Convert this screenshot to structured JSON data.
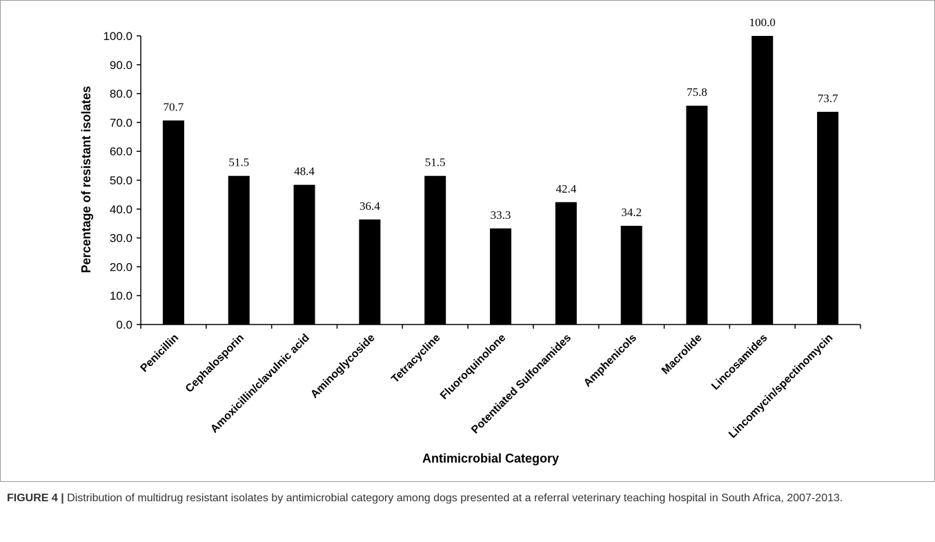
{
  "chart_data": {
    "type": "bar",
    "title": "",
    "xlabel": "Antimicrobial Category",
    "ylabel": "Percentage of resistant isolates",
    "ylim": [
      0,
      100
    ],
    "yticks": [
      "0.0",
      "10.0",
      "20.0",
      "30.0",
      "40.0",
      "50.0",
      "60.0",
      "70.0",
      "80.0",
      "90.0",
      "100.0"
    ],
    "categories": [
      "Penicillin",
      "Cephalosporin",
      "Amoxicillin/clavulnic acid",
      "Aminoglycoside",
      "Tetracycline",
      "Fluoroquinolone",
      "Potentiated Sulfonamides",
      "Amphenicols",
      "Macrolide",
      "Lincosamides",
      "Lincomycin/spectinomycin"
    ],
    "values": [
      70.7,
      51.5,
      48.4,
      36.4,
      51.5,
      33.3,
      42.4,
      34.2,
      75.8,
      100.0,
      73.7
    ],
    "data_labels": [
      "70.7",
      "51.5",
      "48.4",
      "36.4",
      "51.5",
      "33.3",
      "42.4",
      "34.2",
      "75.8",
      "100.0",
      "73.7"
    ],
    "bar_color": "#000000",
    "grid": false,
    "legend": "none"
  },
  "caption": {
    "label": "FIGURE 4 |",
    "text": " Distribution of multidrug resistant isolates by antimicrobial category among dogs presented at a referral veterinary teaching hospital in South Africa, 2007-2013."
  }
}
